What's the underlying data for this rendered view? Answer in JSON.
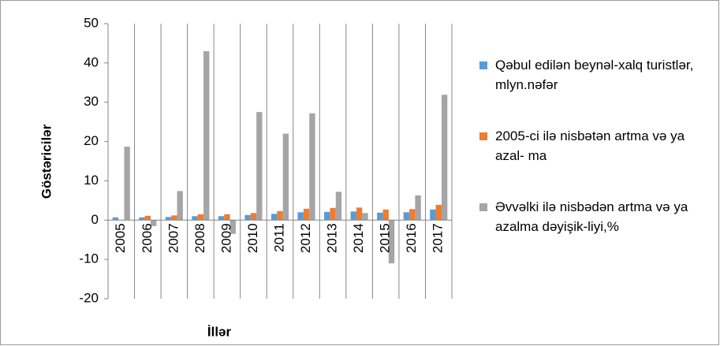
{
  "chart_data": {
    "type": "bar",
    "ylabel": "Göstəricilər",
    "xlabel": "İllər",
    "categories": [
      "2005",
      "2006",
      "2007",
      "2008",
      "2009",
      "2010",
      "2011",
      "2012",
      "2013",
      "2014",
      "2015",
      "2016",
      "2017"
    ],
    "series": [
      {
        "name": "Qəbul edilən beynəl-xalq turistlər, mlyn.nəfər",
        "color": "#5b9bd5",
        "values": [
          0.7,
          0.7,
          0.8,
          1.0,
          1.0,
          1.3,
          1.6,
          2.0,
          2.1,
          2.2,
          1.9,
          2.0,
          2.7
        ]
      },
      {
        "name": "2005-ci ilə nisbətən artma və ya azal- ma",
        "color": "#ed7d31",
        "values": [
          0,
          1.1,
          1.2,
          1.5,
          1.5,
          1.8,
          2.3,
          2.9,
          3.1,
          3.2,
          2.7,
          2.8,
          3.9
        ]
      },
      {
        "name": "Əvvəlki ilə nisbədən artma və ya azalma dəyişik-liyi,%",
        "color": "#a5a5a5",
        "values": [
          18.7,
          -1.5,
          7.4,
          43,
          -3.5,
          27.5,
          22,
          27.2,
          7.2,
          1.8,
          -11,
          6.3,
          31.9
        ]
      }
    ],
    "ylim": [
      -20,
      50
    ],
    "yticks": [
      -20,
      -10,
      0,
      10,
      20,
      30,
      40,
      50
    ],
    "legend": "right"
  }
}
